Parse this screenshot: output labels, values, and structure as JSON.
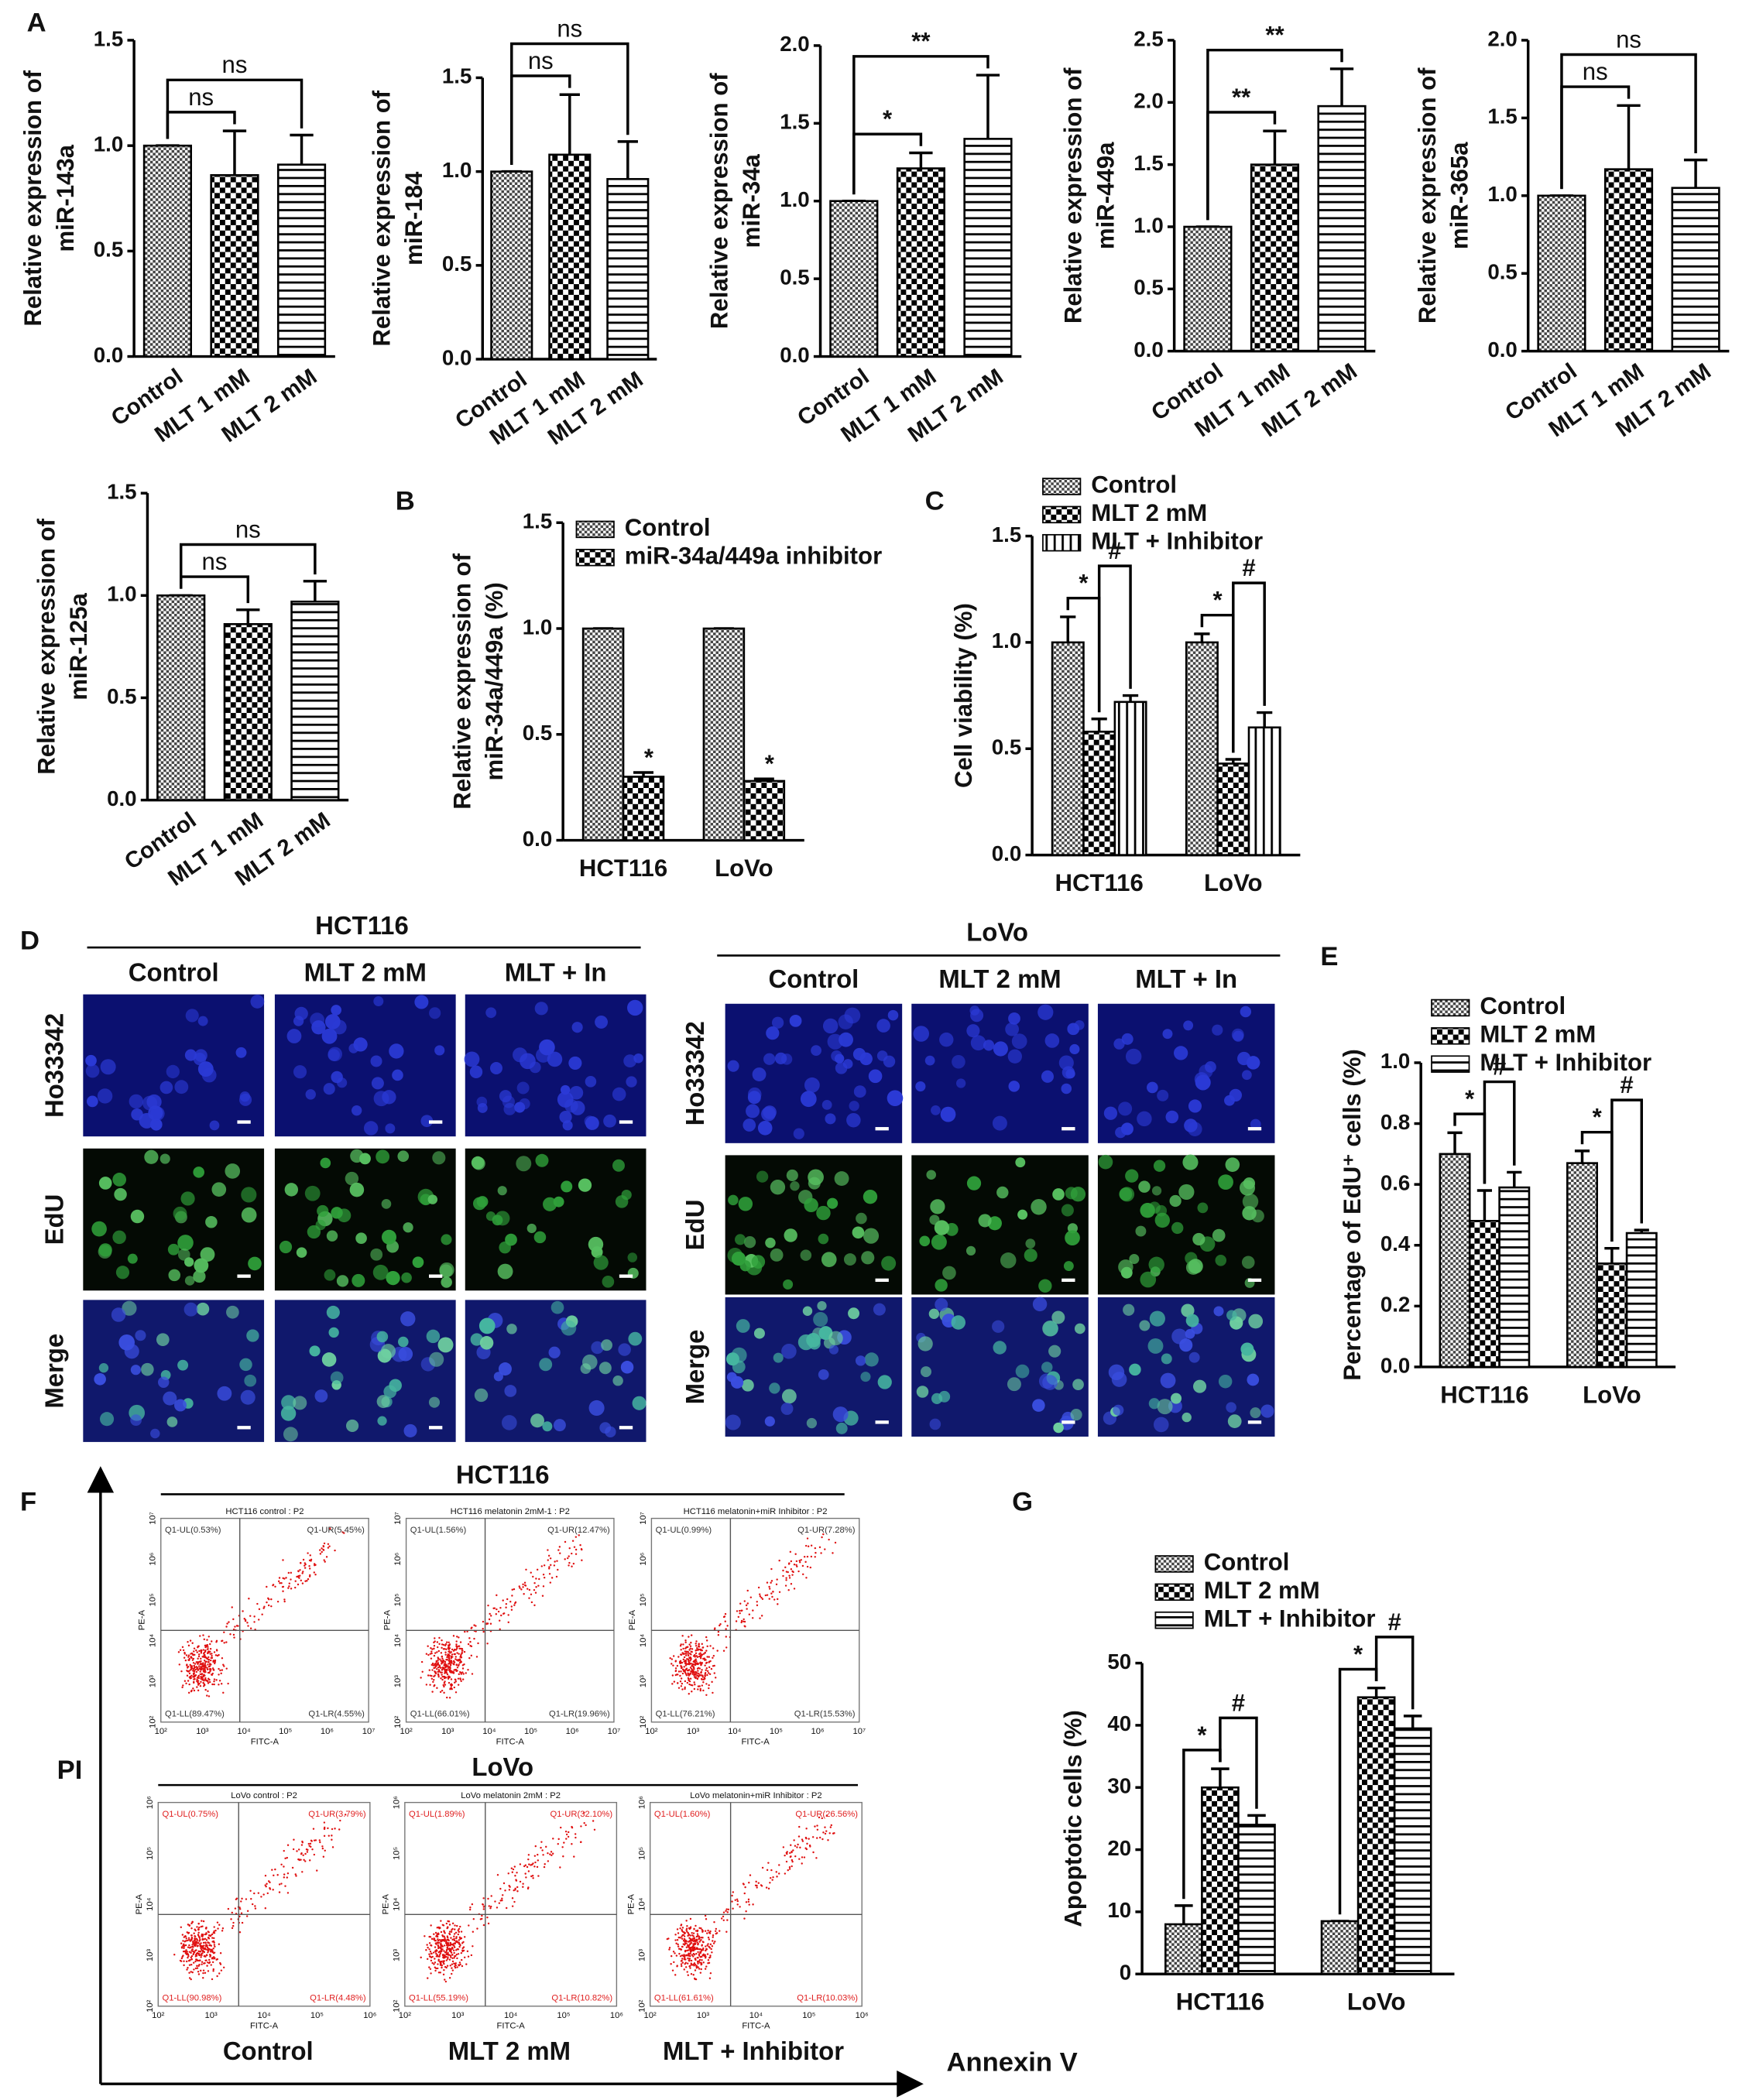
{
  "chart_data": [
    {
      "type": "bar",
      "ylabel": [
        "Relative expression of",
        "miR-143a"
      ],
      "categories": [
        "Control",
        "MLT 1 mM",
        "MLT 2 mM"
      ],
      "values": [
        1.0,
        0.86,
        0.91
      ],
      "errors": [
        0,
        0.21,
        0.14
      ],
      "patterns": [
        "fine",
        "check",
        "hstripe"
      ],
      "ylim": [
        0,
        1.5
      ],
      "yticks": [
        {
          "value": 0,
          "label": "0.0"
        },
        0.5,
        {
          "value": 1,
          "label": "1.0"
        },
        1.5
      ],
      "brackets": [
        {
          "label": "ns",
          "between": [
            0,
            1
          ]
        },
        {
          "label": "ns",
          "between": [
            0,
            2
          ]
        }
      ]
    },
    {
      "type": "bar",
      "ylabel": [
        "Relative expression of",
        "miR-184"
      ],
      "categories": [
        "Control",
        "MLT 1 mM",
        "MLT 2 mM"
      ],
      "values": [
        1.0,
        1.09,
        0.96
      ],
      "errors": [
        0,
        0.32,
        0.2
      ],
      "patterns": [
        "fine",
        "check",
        "hstripe"
      ],
      "ylim": [
        0,
        1.5
      ],
      "yticks": [
        {
          "value": 0,
          "label": "0.0"
        },
        0.5,
        {
          "value": 1,
          "label": "1.0"
        },
        1.5
      ],
      "brackets": [
        {
          "label": "ns",
          "between": [
            0,
            1
          ]
        },
        {
          "label": "ns",
          "between": [
            0,
            2
          ]
        }
      ]
    },
    {
      "type": "bar",
      "ylabel": [
        "Relative expression of",
        "miR-34a"
      ],
      "categories": [
        "Control",
        "MLT 1 mM",
        "MLT 2 mM"
      ],
      "values": [
        1.0,
        1.21,
        1.4
      ],
      "errors": [
        0,
        0.1,
        0.41
      ],
      "patterns": [
        "fine",
        "check",
        "hstripe"
      ],
      "ylim": [
        0,
        2
      ],
      "yticks": [
        {
          "value": 0,
          "label": "0.0"
        },
        0.5,
        {
          "value": 1,
          "label": "1.0"
        },
        1.5,
        {
          "value": 2,
          "label": "2.0"
        }
      ],
      "brackets": [
        {
          "label": "*",
          "between": [
            0,
            1
          ]
        },
        {
          "label": "**",
          "between": [
            0,
            2
          ]
        }
      ]
    },
    {
      "type": "bar",
      "ylabel": [
        "Relative expression of",
        "miR-449a"
      ],
      "categories": [
        "Control",
        "MLT 1 mM",
        "MLT 2 mM"
      ],
      "values": [
        1.0,
        1.5,
        1.97
      ],
      "errors": [
        0,
        0.27,
        0.3
      ],
      "patterns": [
        "fine",
        "check",
        "hstripe"
      ],
      "ylim": [
        0,
        2.5
      ],
      "yticks": [
        {
          "value": 0,
          "label": "0.0"
        },
        0.5,
        {
          "value": 1,
          "label": "1.0"
        },
        1.5,
        {
          "value": 2,
          "label": "2.0"
        },
        2.5
      ],
      "brackets": [
        {
          "label": "**",
          "between": [
            0,
            1
          ]
        },
        {
          "label": "**",
          "between": [
            0,
            2
          ]
        }
      ]
    },
    {
      "type": "bar",
      "ylabel": [
        "Relative expression of",
        "miR-365a"
      ],
      "categories": [
        "Control",
        "MLT 1 mM",
        "MLT 2 mM"
      ],
      "values": [
        1.0,
        1.17,
        1.05
      ],
      "errors": [
        0,
        0.41,
        0.18
      ],
      "patterns": [
        "fine",
        "check",
        "hstripe"
      ],
      "ylim": [
        0,
        2
      ],
      "yticks": [
        {
          "value": 0,
          "label": "0.0"
        },
        0.5,
        {
          "value": 1,
          "label": "1.0"
        },
        1.5,
        {
          "value": 2,
          "label": "2.0"
        }
      ],
      "brackets": [
        {
          "label": "ns",
          "between": [
            0,
            1
          ]
        },
        {
          "label": "ns",
          "between": [
            0,
            2
          ]
        }
      ]
    },
    {
      "type": "bar",
      "ylabel": [
        "Relative expression of",
        "miR-125a"
      ],
      "categories": [
        "Control",
        "MLT 1 mM",
        "MLT 2 mM"
      ],
      "values": [
        1.0,
        0.86,
        0.97
      ],
      "errors": [
        0,
        0.07,
        0.1
      ],
      "patterns": [
        "fine",
        "check",
        "hstripe"
      ],
      "ylim": [
        0,
        1.5
      ],
      "yticks": [
        {
          "value": 0,
          "label": "0.0"
        },
        0.5,
        {
          "value": 1,
          "label": "1.0"
        },
        1.5
      ],
      "brackets": [
        {
          "label": "ns",
          "between": [
            0,
            1
          ]
        },
        {
          "label": "ns",
          "between": [
            0,
            2
          ]
        }
      ]
    },
    {
      "type": "bar",
      "ylabel": [
        "Relative expression of",
        "miR-34a/449a (%)"
      ],
      "categories": [
        "HCT116",
        "LoVo"
      ],
      "series": [
        {
          "name": "Control",
          "pattern": "fine",
          "values": [
            1.0,
            1.0
          ],
          "errors": [
            0,
            0
          ]
        },
        {
          "name": "miR-34a/449a inhibitor",
          "pattern": "check",
          "values": [
            0.3,
            0.28
          ],
          "errors": [
            0.02,
            0.01
          ]
        }
      ],
      "ylim": [
        0,
        1.5
      ],
      "yticks": [
        {
          "value": 0,
          "label": "0.0"
        },
        0.5,
        {
          "value": 1,
          "label": "1.0"
        },
        1.5
      ],
      "marks": [
        {
          "label": "*",
          "category": 0,
          "series": 1
        },
        {
          "label": "*",
          "category": 1,
          "series": 1
        }
      ]
    },
    {
      "type": "bar",
      "ylabel": [
        "Cell viability (%)"
      ],
      "categories": [
        "HCT116",
        "LoVo"
      ],
      "series": [
        {
          "name": "Control",
          "pattern": "fine",
          "values": [
            1.0,
            1.0
          ],
          "errors": [
            0.12,
            0.04
          ]
        },
        {
          "name": "MLT 2 mM",
          "pattern": "check",
          "values": [
            0.58,
            0.43
          ],
          "errors": [
            0.06,
            0.02
          ]
        },
        {
          "name": "MLT + Inhibitor",
          "pattern": "vstripe",
          "values": [
            0.72,
            0.6
          ],
          "errors": [
            0.03,
            0.07
          ]
        }
      ],
      "ylim": [
        0,
        1.5
      ],
      "yticks": [
        {
          "value": 0,
          "label": "0.0"
        },
        0.5,
        {
          "value": 1,
          "label": "1.0"
        },
        1.5
      ],
      "brackets": [
        {
          "label": "*",
          "category": 0,
          "between": [
            0,
            1
          ]
        },
        {
          "label": "#",
          "category": 0,
          "between": [
            1,
            2
          ]
        },
        {
          "label": "*",
          "category": 1,
          "between": [
            0,
            1
          ]
        },
        {
          "label": "#",
          "category": 1,
          "between": [
            1,
            2
          ]
        }
      ]
    },
    {
      "type": "bar",
      "ylabel": [
        "Percentage of EdU⁺ cells (%)"
      ],
      "categories": [
        "HCT116",
        "LoVo"
      ],
      "series": [
        {
          "name": "Control",
          "pattern": "fine",
          "values": [
            0.7,
            0.67
          ],
          "errors": [
            0.07,
            0.04
          ]
        },
        {
          "name": "MLT 2 mM",
          "pattern": "check",
          "values": [
            0.48,
            0.34
          ],
          "errors": [
            0.1,
            0.05
          ]
        },
        {
          "name": "MLT + Inhibitor",
          "pattern": "hstripe",
          "values": [
            0.59,
            0.44
          ],
          "errors": [
            0.05,
            0.01
          ]
        }
      ],
      "ylim": [
        0,
        1
      ],
      "yticks": [
        {
          "value": 0,
          "label": "0.0"
        },
        0.2,
        0.4,
        0.6,
        0.8,
        {
          "value": 1,
          "label": "1.0"
        }
      ],
      "brackets": [
        {
          "label": "*",
          "category": 0,
          "between": [
            0,
            1
          ]
        },
        {
          "label": "#",
          "category": 0,
          "between": [
            1,
            2
          ]
        },
        {
          "label": "*",
          "category": 1,
          "between": [
            0,
            1
          ]
        },
        {
          "label": "#",
          "category": 1,
          "between": [
            1,
            2
          ]
        }
      ]
    },
    {
      "type": "bar",
      "ylabel": [
        "Apoptotic cells (%)"
      ],
      "categories": [
        "HCT116",
        "LoVo"
      ],
      "series": [
        {
          "name": "Control",
          "pattern": "fine",
          "values": [
            8,
            8.5
          ],
          "errors": [
            3,
            0
          ]
        },
        {
          "name": "MLT 2 mM",
          "pattern": "check",
          "values": [
            30,
            44.5
          ],
          "errors": [
            3,
            1.5
          ]
        },
        {
          "name": "MLT + Inhibitor",
          "pattern": "hstripe",
          "values": [
            24,
            39.5
          ],
          "errors": [
            1.5,
            2
          ]
        }
      ],
      "ylim": [
        0,
        50
      ],
      "yticks": [
        0,
        10,
        20,
        30,
        40,
        50
      ],
      "brackets": [
        {
          "label": "*",
          "category": 0,
          "between": [
            0,
            1
          ]
        },
        {
          "label": "#",
          "category": 0,
          "between": [
            1,
            2
          ]
        },
        {
          "label": "*",
          "category": 1,
          "between": [
            0,
            1
          ]
        },
        {
          "label": "#",
          "category": 1,
          "between": [
            1,
            2
          ]
        }
      ]
    }
  ],
  "figure": {
    "panels": [
      "A",
      "B",
      "C",
      "D",
      "E",
      "F",
      "G"
    ],
    "microscopy": [
      {
        "title": "HCT116",
        "columns": [
          "Control",
          "MLT 2 mM",
          "MLT + In"
        ],
        "rows": [
          "Ho33342",
          "EdU",
          "Merge"
        ]
      },
      {
        "title": "LoVo",
        "columns": [
          "Control",
          "MLT 2 mM",
          "MLT + In"
        ],
        "rows": [
          "Ho33342",
          "EdU",
          "Merge"
        ]
      }
    ],
    "flow": {
      "x_axis": "Annexin V",
      "y_axis": "PI",
      "plot_x_axis": "FITC-A",
      "plot_y_axis": "PE-A",
      "columns": [
        "Control",
        "MLT 2 mM",
        "MLT + Inhibitor"
      ],
      "rows": [
        {
          "title": "HCT116",
          "label_color": "#333333",
          "ticks": [
            "10²",
            "10³",
            "10⁴",
            "10⁵",
            "10⁶",
            "10⁷"
          ],
          "plots": [
            {
              "title": "HCT116 control : P2",
              "quadrants": [
                "Q1-UL(0.53%)",
                "Q1-UR(5.45%)",
                "Q1-LL(89.47%)",
                "Q1-LR(4.55%)"
              ]
            },
            {
              "title": "HCT116 melatonin 2mM-1 : P2",
              "quadrants": [
                "Q1-UL(1.56%)",
                "Q1-UR(12.47%)",
                "Q1-LL(66.01%)",
                "Q1-LR(19.96%)"
              ]
            },
            {
              "title": "HCT116 melatonin+miR Inhibitor : P2",
              "quadrants": [
                "Q1-UL(0.99%)",
                "Q1-UR(7.28%)",
                "Q1-LL(76.21%)",
                "Q1-LR(15.53%)"
              ]
            }
          ]
        },
        {
          "title": "LoVo",
          "label_color": "#e02020",
          "ticks": [
            "10²",
            "10³",
            "10⁴",
            "10⁵",
            "10⁶"
          ],
          "plots": [
            {
              "title": "LoVo control : P2",
              "quadrants": [
                "Q1-UL(0.75%)",
                "Q1-UR(3.79%)",
                "Q1-LL(90.98%)",
                "Q1-LR(4.48%)"
              ]
            },
            {
              "title": "LoVo melatonin 2mM : P2",
              "quadrants": [
                "Q1-UL(1.89%)",
                "Q1-UR(32.10%)",
                "Q1-LL(55.19%)",
                "Q1-LR(10.82%)"
              ]
            },
            {
              "title": "LoVo melatonin+miR Inhibitor : P2",
              "quadrants": [
                "Q1-UL(1.60%)",
                "Q1-UR(26.56%)",
                "Q1-LL(61.61%)",
                "Q1-LR(10.03%)"
              ]
            }
          ]
        }
      ]
    }
  }
}
